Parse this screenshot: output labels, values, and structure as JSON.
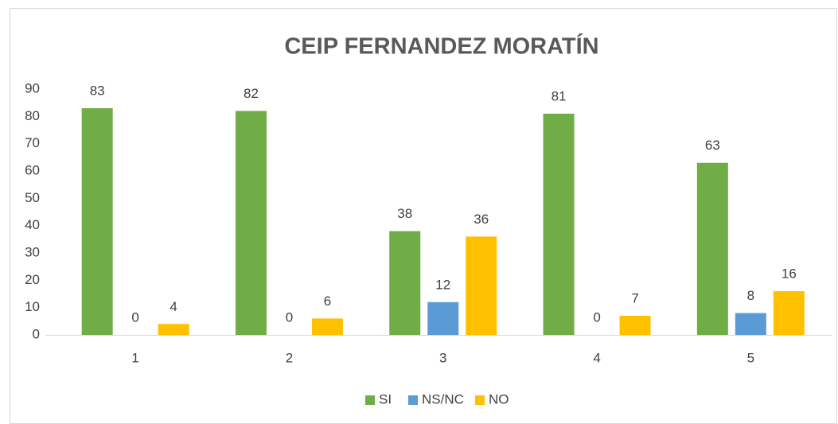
{
  "chart_data": {
    "type": "bar",
    "title": "CEIP FERNANDEZ MORATÍN",
    "categories": [
      "1",
      "2",
      "3",
      "4",
      "5"
    ],
    "series": [
      {
        "name": "SI",
        "color": "#70ad47",
        "values": [
          83,
          82,
          38,
          81,
          63
        ]
      },
      {
        "name": "NS/NC",
        "color": "#5b9bd5",
        "values": [
          0,
          0,
          12,
          0,
          8
        ]
      },
      {
        "name": "NO",
        "color": "#ffc000",
        "values": [
          4,
          6,
          36,
          7,
          16
        ]
      }
    ],
    "ylim": [
      0,
      90
    ],
    "yticks": [
      0,
      10,
      20,
      30,
      40,
      50,
      60,
      70,
      80,
      90
    ],
    "grid": false,
    "legend": "bottom"
  }
}
